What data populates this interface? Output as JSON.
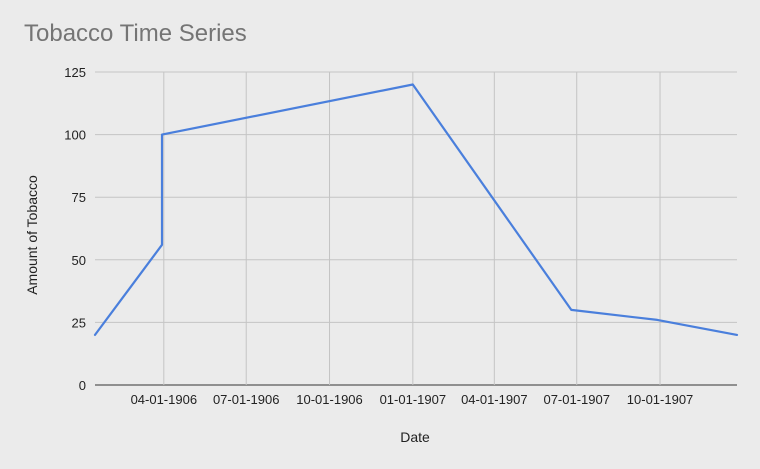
{
  "chart_data": {
    "type": "line",
    "title": "Tobacco Time Series",
    "xlabel": "Date",
    "ylabel": "Amount of Tobacco",
    "ylim": [
      0,
      125
    ],
    "yticks": [
      0,
      25,
      50,
      75,
      100,
      125
    ],
    "xlim": [
      "1906-01-15",
      "1907-12-25"
    ],
    "xticks": [
      {
        "date": "1906-04-01",
        "label": "04-01-1906"
      },
      {
        "date": "1906-07-01",
        "label": "07-01-1906"
      },
      {
        "date": "1906-10-01",
        "label": "10-01-1906"
      },
      {
        "date": "1907-01-01",
        "label": "01-01-1907"
      },
      {
        "date": "1907-04-01",
        "label": "04-01-1907"
      },
      {
        "date": "1907-07-01",
        "label": "07-01-1907"
      },
      {
        "date": "1907-10-01",
        "label": "10-01-1907"
      }
    ],
    "grid": true,
    "series": [
      {
        "color": "#4a7fdc",
        "points": [
          {
            "x": "1906-01-15",
            "y": 20
          },
          {
            "x": "1906-03-30",
            "y": 56
          },
          {
            "x": "1906-03-30",
            "y": 100
          },
          {
            "x": "1907-01-01",
            "y": 120
          },
          {
            "x": "1907-06-25",
            "y": 30
          },
          {
            "x": "1907-09-28",
            "y": 26
          },
          {
            "x": "1907-12-25",
            "y": 20
          }
        ]
      }
    ]
  }
}
